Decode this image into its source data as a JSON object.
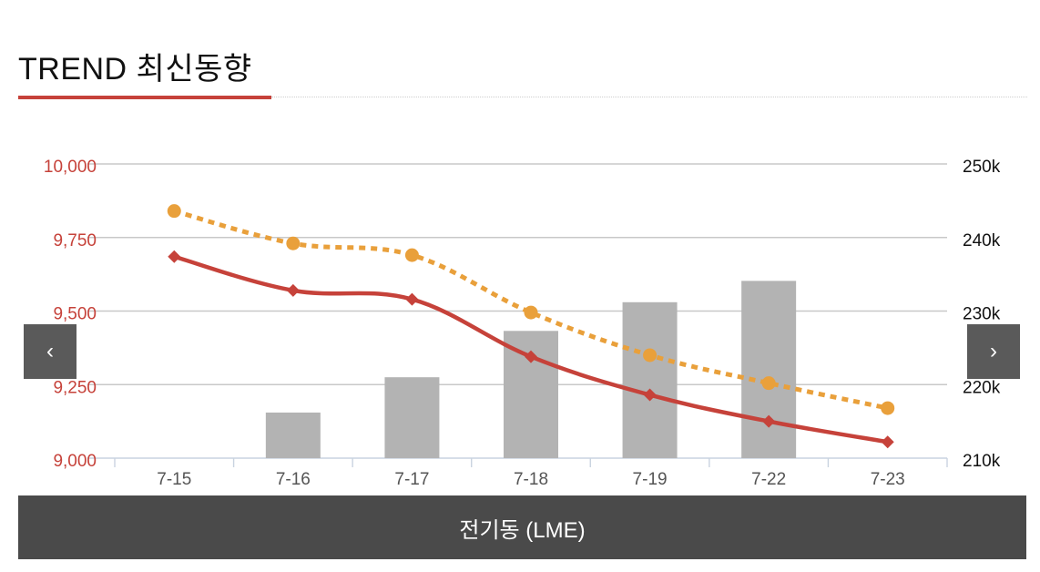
{
  "header": {
    "title": "TREND 최신동향"
  },
  "nav": {
    "prev_glyph": "‹",
    "next_glyph": "›"
  },
  "footer": {
    "label": "전기동 (LME)"
  },
  "colors": {
    "accent_red": "#c6423a",
    "line_orange": "#e9a03b",
    "bar_gray": "#b3b3b3",
    "grid": "#c8c8c8",
    "left_axis_text": "#c6423a",
    "right_axis_text": "#111111",
    "footer_bg": "#4a4a4a"
  },
  "chart_data": {
    "type": "bar",
    "categories": [
      "7-15",
      "7-16",
      "7-17",
      "7-18",
      "7-19",
      "7-22",
      "7-23"
    ],
    "left_axis": {
      "ylim": [
        9000,
        10000
      ],
      "ticks": [
        "10,000",
        "9,750",
        "9,500",
        "9,250",
        "9,000"
      ],
      "tick_values": [
        10000,
        9750,
        9500,
        9250,
        9000
      ]
    },
    "right_axis": {
      "ylim": [
        210,
        250
      ],
      "ticks": [
        "250k",
        "240k",
        "230k",
        "220k",
        "210k"
      ],
      "tick_values": [
        250,
        240,
        230,
        220,
        210
      ]
    },
    "series": [
      {
        "type": "bar",
        "axis": "right",
        "values": [
          210,
          216.2,
          221,
          227.3,
          231.2,
          234.1,
          210
        ]
      },
      {
        "type": "line",
        "style": "solid",
        "marker": "diamond",
        "axis": "left",
        "values": [
          9685,
          9570,
          9540,
          9345,
          9215,
          9125,
          9055
        ]
      },
      {
        "type": "line",
        "style": "dotted",
        "marker": "circle",
        "axis": "left",
        "values": [
          9840,
          9730,
          9690,
          9495,
          9350,
          9255,
          9170
        ]
      }
    ],
    "grid": true
  }
}
